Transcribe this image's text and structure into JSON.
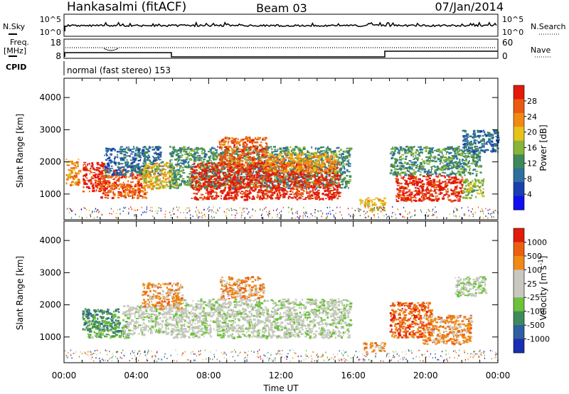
{
  "header": {
    "title": "Hankasalmi (fitACF)",
    "beam": "Beam 03",
    "date": "07/Jan/2014"
  },
  "top_panels": {
    "nsky_label": "N.Sky",
    "nsky_ticks": [
      "10^5",
      "10^0"
    ],
    "nsearch_label": "N.Search",
    "nsearch_ticks": [
      "10^5",
      "10^0"
    ],
    "freq_label": "Freq.",
    "freq_unit": "[MHz]",
    "freq_ticks": [
      "18",
      "8"
    ],
    "nave_label": "Nave",
    "nave_ticks": [
      "60",
      "0"
    ],
    "cpid_label": "CPID",
    "cpid_text": "normal (fast stereo) 153"
  },
  "colors": {
    "power": [
      "#1010ee",
      "#1a3fb0",
      "#2f6fa0",
      "#3e8a5a",
      "#86b53a",
      "#e6c21a",
      "#f08a14",
      "#ea5a10",
      "#e21a0a"
    ],
    "velocity": [
      "#1a2fb0",
      "#2f5fa0",
      "#3f8a5a",
      "#6cc23a",
      "#c8c8c0",
      "#c8c8c0",
      "#f08a14",
      "#ea6010",
      "#e21a0a"
    ]
  },
  "chart_data": [
    {
      "type": "heatmap",
      "name": "power",
      "ylabel": "Slant Range [km]",
      "yticks": [
        "4000",
        "3000",
        "2000",
        "1000"
      ],
      "ylim": [
        200,
        4600
      ],
      "xlim": [
        "00:00",
        "24:00"
      ],
      "colorbar_label": "Power [dB]",
      "colorbar_ticks": [
        "28",
        "24",
        "20",
        "16",
        "12",
        "8",
        "4"
      ],
      "patches": [
        {
          "x0": 0.1,
          "x1": 0.8,
          "y0": 1300,
          "y1": 2100,
          "c": 6
        },
        {
          "x0": 1.0,
          "x1": 2.3,
          "y0": 1100,
          "y1": 2000,
          "c": 8
        },
        {
          "x0": 2.0,
          "x1": 4.5,
          "y0": 900,
          "y1": 1800,
          "c": 7
        },
        {
          "x0": 2.2,
          "x1": 5.4,
          "y0": 1600,
          "y1": 2500,
          "c": 2
        },
        {
          "x0": 4.3,
          "x1": 6.2,
          "y0": 1200,
          "y1": 2000,
          "c": 5
        },
        {
          "x0": 5.8,
          "x1": 15.8,
          "y0": 1200,
          "y1": 2500,
          "c": 3
        },
        {
          "x0": 7.0,
          "x1": 15.2,
          "y0": 850,
          "y1": 2000,
          "c": 8
        },
        {
          "x0": 8.5,
          "x1": 11.2,
          "y0": 1900,
          "y1": 2800,
          "c": 7
        },
        {
          "x0": 11.0,
          "x1": 15.0,
          "y0": 1700,
          "y1": 2300,
          "c": 6
        },
        {
          "x0": 16.3,
          "x1": 17.7,
          "y0": 500,
          "y1": 900,
          "c": 5
        },
        {
          "x0": 18.0,
          "x1": 23.0,
          "y0": 1600,
          "y1": 2500,
          "c": 3
        },
        {
          "x0": 18.3,
          "x1": 22.0,
          "y0": 800,
          "y1": 1600,
          "c": 8
        },
        {
          "x0": 22.0,
          "x1": 23.2,
          "y0": 900,
          "y1": 1500,
          "c": 4
        },
        {
          "x0": 22.0,
          "x1": 24.0,
          "y0": 2300,
          "y1": 3000,
          "c": 2
        }
      ]
    },
    {
      "type": "heatmap",
      "name": "velocity",
      "ylabel": "Slant Range [km]",
      "yticks": [
        "4000",
        "3000",
        "2000",
        "1000"
      ],
      "ylim": [
        200,
        4600
      ],
      "xlim": [
        "00:00",
        "24:00"
      ],
      "xlabel": "Time UT",
      "xticks": [
        "00:00",
        "04:00",
        "08:00",
        "12:00",
        "16:00",
        "20:00",
        "00:00"
      ],
      "colorbar_label": "Velocity [m s",
      "colorbar_label_sup": "-1",
      "colorbar_label_end": "]",
      "colorbar_ticks": [
        "1000",
        "500",
        "100",
        "25",
        "-25",
        "-100",
        "-500",
        "-1000"
      ],
      "patches": [
        {
          "x0": 1.0,
          "x1": 3.0,
          "y0": 1200,
          "y1": 1900,
          "c": 2
        },
        {
          "x0": 1.2,
          "x1": 3.5,
          "y0": 1000,
          "y1": 1500,
          "c": 3
        },
        {
          "x0": 3.2,
          "x1": 6.0,
          "y0": 1100,
          "y1": 2000,
          "c": 4
        },
        {
          "x0": 6.0,
          "x1": 15.8,
          "y0": 1000,
          "y1": 2200,
          "c": 4
        },
        {
          "x0": 4.3,
          "x1": 6.5,
          "y0": 1900,
          "y1": 2700,
          "c": 6
        },
        {
          "x0": 8.6,
          "x1": 11.0,
          "y0": 2200,
          "y1": 2900,
          "c": 6
        },
        {
          "x0": 16.5,
          "x1": 17.7,
          "y0": 550,
          "y1": 850,
          "c": 6
        },
        {
          "x0": 18.0,
          "x1": 20.3,
          "y0": 1000,
          "y1": 2100,
          "c": 7
        },
        {
          "x0": 19.8,
          "x1": 22.5,
          "y0": 800,
          "y1": 1700,
          "c": 6
        },
        {
          "x0": 21.6,
          "x1": 23.3,
          "y0": 2300,
          "y1": 2900,
          "c": 4
        }
      ]
    }
  ]
}
